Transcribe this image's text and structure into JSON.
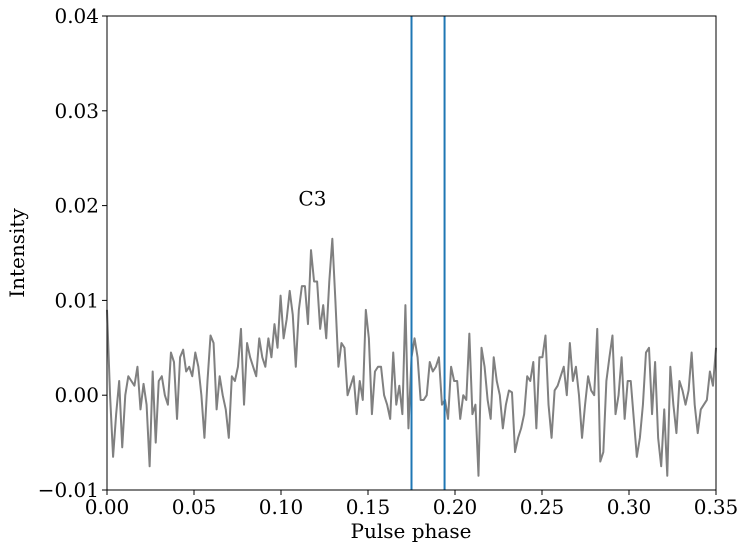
{
  "chart_data": {
    "type": "line",
    "xlabel": "Pulse phase",
    "ylabel": "Intensity",
    "xlim": [
      0,
      0.35
    ],
    "ylim": [
      -0.01,
      0.04
    ],
    "xticks": [
      {
        "value": 0,
        "label": "0.00"
      },
      0.05,
      {
        "value": 0.1,
        "label": "0.10"
      },
      0.15,
      {
        "value": 0.2,
        "label": "0.20"
      },
      0.25,
      {
        "value": 0.3,
        "label": "0.30"
      },
      0.35
    ],
    "yticks": [
      {
        "value": -0.01,
        "label": "−0.01"
      },
      {
        "value": 0,
        "label": "0.00"
      },
      0.01,
      0.02,
      0.03,
      0.04
    ],
    "grid": false,
    "annotations": [
      {
        "text": "C3",
        "x": 0.11,
        "y": 0.02
      }
    ],
    "vlines": {
      "color": "#1f77b4",
      "values": [
        0.175,
        0.194
      ]
    },
    "x": [
      0,
      0.00175,
      0.0035,
      0.00525,
      0.007,
      0.00875,
      0.0105,
      0.01225,
      0.014,
      0.01575,
      0.0175,
      0.01925,
      0.021,
      0.02275,
      0.0245,
      0.02625,
      0.028,
      0.02975,
      0.0315,
      0.03325,
      0.035,
      0.03675,
      0.0385,
      0.04025,
      0.042,
      0.04375,
      0.0455,
      0.04725,
      0.049,
      0.05075,
      0.0525,
      0.05425,
      0.056,
      0.05775,
      0.0595,
      0.06125,
      0.063,
      0.06475,
      0.0665,
      0.06825,
      0.07,
      0.07175,
      0.0735,
      0.07525,
      0.077,
      0.07875,
      0.0805,
      0.08225,
      0.084,
      0.08575,
      0.0875,
      0.08925,
      0.091,
      0.09275,
      0.0945,
      0.09625,
      0.098,
      0.09975,
      0.1015,
      0.10325,
      0.105,
      0.10675,
      0.1085,
      0.11025,
      0.112,
      0.11375,
      0.1155,
      0.11725,
      0.119,
      0.12075,
      0.1225,
      0.12425,
      0.126,
      0.12775,
      0.1295,
      0.13125,
      0.133,
      0.13475,
      0.1365,
      0.13825,
      0.14,
      0.14175,
      0.1435,
      0.14525,
      0.147,
      0.14875,
      0.1505,
      0.15225,
      0.154,
      0.15575,
      0.1575,
      0.15925,
      0.161,
      0.16275,
      0.1645,
      0.16625,
      0.168,
      0.16975,
      0.1715,
      0.17325,
      0.175,
      0.17675,
      0.1785,
      0.18025,
      0.182,
      0.18375,
      0.1855,
      0.18725,
      0.189,
      0.19075,
      0.1925,
      0.19425,
      0.196,
      0.19775,
      0.1995,
      0.20125,
      0.203,
      0.20475,
      0.2065,
      0.20825,
      0.21,
      0.21175,
      0.2135,
      0.21525,
      0.217,
      0.21875,
      0.2205,
      0.22225,
      0.224,
      0.22575,
      0.2275,
      0.22925,
      0.231,
      0.23275,
      0.2345,
      0.23625,
      0.238,
      0.23975,
      0.2415,
      0.24325,
      0.245,
      0.24675,
      0.2485,
      0.25025,
      0.252,
      0.25375,
      0.2555,
      0.25725,
      0.259,
      0.26075,
      0.2625,
      0.26425,
      0.266,
      0.26775,
      0.2695,
      0.27125,
      0.273,
      0.27475,
      0.2765,
      0.27825,
      0.28,
      0.28175,
      0.2835,
      0.28525,
      0.287,
      0.28875,
      0.2905,
      0.29225,
      0.294,
      0.29575,
      0.2975,
      0.29925,
      0.301,
      0.30275,
      0.3045,
      0.30625,
      0.308,
      0.30975,
      0.3115,
      0.31325,
      0.315,
      0.31675,
      0.3185,
      0.32025,
      0.322,
      0.32375,
      0.3255,
      0.32725,
      0.329,
      0.33075,
      0.3325,
      0.33425,
      0.336,
      0.33775,
      0.3395,
      0.34125,
      0.343,
      0.34475,
      0.3465,
      0.34825,
      0.35
    ],
    "series": [
      {
        "color": "#808080",
        "values": [
          0.009,
          0,
          -0.0065,
          -0.002,
          0.0015,
          -0.0055,
          0,
          0.002,
          0.0015,
          0.001,
          0.003,
          -0.0015,
          0.0012,
          -0.001,
          -0.0075,
          0.0025,
          -0.005,
          0.0015,
          0.002,
          0,
          -0.001,
          0.0045,
          0.0035,
          -0.0025,
          0.004,
          0.0048,
          0.0025,
          0.003,
          0.002,
          0.0045,
          0.003,
          0,
          -0.0045,
          0.0015,
          0.0063,
          0.0055,
          -0.0015,
          0.002,
          0,
          -0.0015,
          -0.0045,
          0.002,
          0.0015,
          0.003,
          0.007,
          -0.001,
          0.0055,
          0.004,
          0.003,
          0.002,
          0.006,
          0.004,
          0.003,
          0.006,
          0.004,
          0.0075,
          0.005,
          0.0105,
          0.006,
          0.008,
          0.011,
          0.0085,
          0.003,
          0.009,
          0.0115,
          0.0115,
          0.0075,
          0.0153,
          0.012,
          0.012,
          0.007,
          0.0095,
          0.006,
          0.012,
          0.0165,
          0.01,
          0.003,
          0.0055,
          0.005,
          0,
          0.001,
          0.002,
          -0.002,
          0.0015,
          -0.0005,
          0.009,
          0.006,
          -0.002,
          0.0025,
          0.003,
          0.003,
          0,
          -0.001,
          -0.0025,
          0.0045,
          -0.001,
          0.001,
          -0.002,
          0.0095,
          -0.0035,
          0.004,
          0.006,
          0.004,
          -0.0005,
          -0.0005,
          0,
          0.0035,
          0.0025,
          0.003,
          0.004,
          -0.001,
          -0.0005,
          -0.0025,
          0.003,
          0.0015,
          0.0015,
          -0.0025,
          0,
          -0.0005,
          0.0065,
          -0.002,
          -0.001,
          -0.0085,
          0.005,
          0.003,
          -0.0005,
          -0.0025,
          0.004,
          0.0015,
          0,
          -0.0035,
          -0.001,
          0.0005,
          0.0003,
          -0.006,
          -0.0045,
          -0.0035,
          -0.002,
          0.002,
          0.0015,
          0.0035,
          -0.0035,
          0.004,
          0.004,
          0.0063,
          -0.001,
          -0.0045,
          0.0005,
          0.001,
          0.002,
          0.003,
          0,
          0.0055,
          0.0015,
          0.003,
          0,
          -0.0045,
          -0.001,
          0.002,
          0.0005,
          0,
          0.007,
          -0.007,
          -0.006,
          0.0015,
          0.004,
          0.0063,
          -0.002,
          0,
          0.004,
          -0.0025,
          0.0015,
          0.0015,
          -0.0025,
          -0.0065,
          -0.0045,
          -0.001,
          0.0045,
          0.005,
          -0.002,
          0.0035,
          -0.0045,
          -0.0075,
          -0.0015,
          -0.0085,
          0.003,
          -0.001,
          -0.004,
          0.0015,
          0.0005,
          -0.001,
          0.0005,
          0.0045,
          -0.001,
          -0.004,
          -0.0015,
          -0.001,
          -0.0005,
          0.0025,
          0.001,
          0.005
        ]
      }
    ]
  }
}
